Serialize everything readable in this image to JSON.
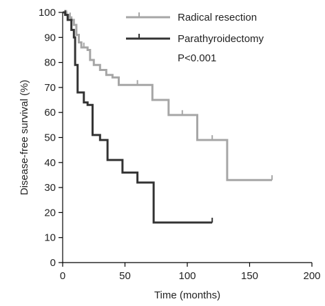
{
  "chart_data": {
    "type": "line",
    "title": "",
    "xlabel": "Time (months)",
    "ylabel": "Disease-free survival (%)",
    "xlim": [
      0,
      200
    ],
    "ylim": [
      0,
      100
    ],
    "x_ticks": [
      0,
      50,
      100,
      150,
      200
    ],
    "y_ticks": [
      0,
      10,
      20,
      30,
      40,
      50,
      60,
      70,
      80,
      90,
      100
    ],
    "grid": false,
    "legend_position": "top-right",
    "annotation": "P<0.001",
    "series": [
      {
        "name": "Radical resection",
        "color": "#a6a6a6",
        "step": true,
        "x": [
          0,
          3,
          5,
          7,
          9,
          11,
          13,
          15,
          20,
          22,
          25,
          30,
          35,
          40,
          45,
          72,
          85,
          108,
          132,
          168
        ],
        "y": [
          100,
          99,
          98,
          97,
          95,
          91,
          88,
          86,
          85,
          81,
          79,
          77,
          75,
          74,
          71,
          65,
          59,
          49,
          33,
          33
        ],
        "censor_x": [
          3,
          6,
          17,
          60,
          96,
          120,
          168
        ],
        "censor_y": [
          99,
          98,
          86,
          71,
          59,
          49,
          33
        ]
      },
      {
        "name": "Parathyroidectomy",
        "color": "#333333",
        "step": true,
        "x": [
          0,
          2,
          4,
          7,
          9,
          10,
          12,
          17,
          20,
          24,
          30,
          36,
          48,
          60,
          73,
          120
        ],
        "y": [
          100,
          99,
          97,
          93,
          90,
          79,
          68,
          64,
          63,
          51,
          49,
          41,
          36,
          32,
          16,
          16
        ],
        "censor_x": [
          2,
          120
        ],
        "censor_y": [
          99,
          16
        ]
      }
    ]
  }
}
